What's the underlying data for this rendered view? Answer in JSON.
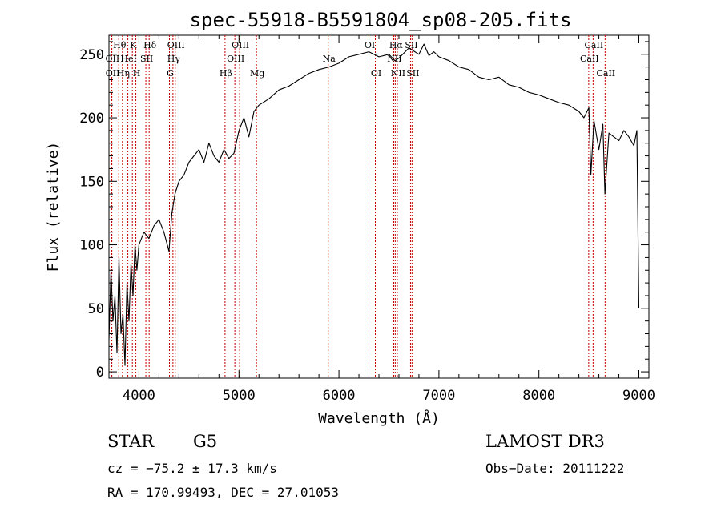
{
  "chart_data": {
    "type": "line",
    "title": "spec-55918-B5591804_sp08-205.fits",
    "xlabel": "Wavelength (Å)",
    "ylabel": "Flux (relative)",
    "xlim": [
      3700,
      9100
    ],
    "ylim": [
      -5,
      265
    ],
    "xticks": [
      4000,
      5000,
      6000,
      7000,
      8000,
      9000
    ],
    "yticks": [
      0,
      50,
      100,
      150,
      200,
      250
    ],
    "series": [
      {
        "name": "flux",
        "x": [
          3700,
          3720,
          3740,
          3760,
          3780,
          3800,
          3820,
          3840,
          3860,
          3880,
          3900,
          3920,
          3940,
          3960,
          3980,
          4000,
          4050,
          4100,
          4150,
          4200,
          4250,
          4300,
          4330,
          4360,
          4400,
          4450,
          4500,
          4550,
          4600,
          4650,
          4700,
          4750,
          4800,
          4850,
          4900,
          4950,
          5000,
          5050,
          5100,
          5150,
          5200,
          5300,
          5400,
          5500,
          5600,
          5700,
          5800,
          5900,
          6000,
          6100,
          6200,
          6300,
          6400,
          6500,
          6560,
          6600,
          6700,
          6800,
          6850,
          6900,
          6950,
          7000,
          7100,
          7200,
          7300,
          7400,
          7500,
          7600,
          7700,
          7800,
          7900,
          8000,
          8100,
          8200,
          8300,
          8400,
          8450,
          8500,
          8520,
          8550,
          8600,
          8640,
          8660,
          8700,
          8750,
          8800,
          8850,
          8900,
          8950,
          8980,
          9000
        ],
        "values": [
          25,
          80,
          40,
          60,
          15,
          90,
          30,
          45,
          5,
          70,
          40,
          85,
          60,
          100,
          80,
          100,
          110,
          105,
          115,
          120,
          110,
          95,
          125,
          140,
          150,
          155,
          165,
          170,
          175,
          165,
          180,
          170,
          165,
          175,
          168,
          172,
          190,
          200,
          185,
          205,
          210,
          215,
          222,
          225,
          230,
          235,
          238,
          240,
          243,
          248,
          250,
          252,
          248,
          250,
          245,
          247,
          255,
          250,
          258,
          249,
          252,
          248,
          245,
          240,
          238,
          232,
          230,
          232,
          226,
          224,
          220,
          218,
          215,
          212,
          210,
          205,
          200,
          208,
          155,
          198,
          175,
          195,
          140,
          188,
          185,
          182,
          190,
          185,
          178,
          190,
          50
        ]
      }
    ],
    "spectral_lines": [
      {
        "label": "Hθ",
        "x": 3798,
        "row": 0
      },
      {
        "label": "OII",
        "x": 3727,
        "row": 1
      },
      {
        "label": "OII",
        "x": 3729,
        "row": 2
      },
      {
        "label": "K",
        "x": 3934,
        "row": 0
      },
      {
        "label": "HeI",
        "x": 3889,
        "row": 1
      },
      {
        "label": "Hη",
        "x": 3835,
        "row": 2
      },
      {
        "label": "Hδ",
        "x": 4102,
        "row": 0
      },
      {
        "label": "SII",
        "x": 4069,
        "row": 1
      },
      {
        "label": "H",
        "x": 3969,
        "row": 2
      },
      {
        "label": "OIII",
        "x": 4363,
        "row": 0
      },
      {
        "label": "Hγ",
        "x": 4340,
        "row": 1
      },
      {
        "label": "G",
        "x": 4305,
        "row": 2
      },
      {
        "label": "OIII",
        "x": 5007,
        "row": 0
      },
      {
        "label": "OIII",
        "x": 4959,
        "row": 1
      },
      {
        "label": "Hβ",
        "x": 4861,
        "row": 2
      },
      {
        "label": "Mg",
        "x": 5175,
        "row": 2
      },
      {
        "label": "Na",
        "x": 5893,
        "row": 1
      },
      {
        "label": "OI",
        "x": 6300,
        "row": 0
      },
      {
        "label": "OI",
        "x": 6364,
        "row": 2
      },
      {
        "label": "Hα",
        "x": 6563,
        "row": 0
      },
      {
        "label": "SII",
        "x": 6716,
        "row": 0
      },
      {
        "label": "NII",
        "x": 6548,
        "row": 1
      },
      {
        "label": "NII",
        "x": 6584,
        "row": 2
      },
      {
        "label": "SII",
        "x": 6731,
        "row": 2
      },
      {
        "label": "CaII",
        "x": 8542,
        "row": 0
      },
      {
        "label": "CaII",
        "x": 8498,
        "row": 1
      },
      {
        "label": "CaII",
        "x": 8662,
        "row": 2
      }
    ],
    "line_color": "#c00000"
  },
  "info": {
    "class": "STAR",
    "subclass": "G5",
    "survey": "LAMOST DR3",
    "cz": "cz = −75.2 ± 17.3 km/s",
    "obs_date": "Obs−Date: 20111222",
    "coords": "RA = 170.99493, DEC =  27.01053"
  }
}
